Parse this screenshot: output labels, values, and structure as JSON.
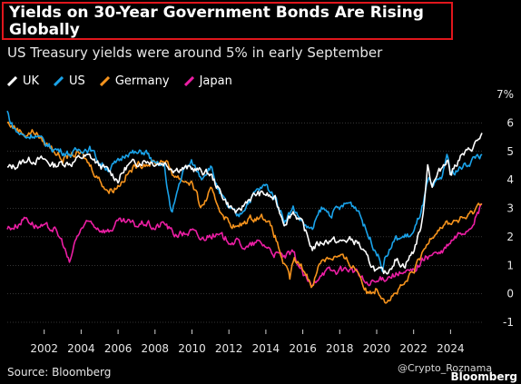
{
  "header": {
    "title": "Yields on 30-Year Government Bonds Are Rising Globally",
    "subtitle": "US Treasury yields were around 5% in early September"
  },
  "footer": {
    "source": "Source: Bloomberg",
    "watermark": "@Crypto_Roznama",
    "brand": "Bloomberg"
  },
  "colors": {
    "background": "#000000",
    "title_border": "#e0161c",
    "gridline": "#6a6a6a"
  },
  "chart_data": {
    "type": "line",
    "title": "Yields on 30-Year Government Bonds Are Rising Globally",
    "subtitle": "US Treasury yields were around 5% in early September",
    "xlabel": "",
    "ylabel": "",
    "y_unit": "%",
    "xlim": [
      2000.0,
      2025.75
    ],
    "ylim": [
      -1,
      7
    ],
    "x_ticks": [
      2002,
      2004,
      2006,
      2008,
      2010,
      2012,
      2014,
      2016,
      2018,
      2020,
      2022,
      2024
    ],
    "y_ticks": [
      -1,
      0,
      1,
      2,
      3,
      4,
      5,
      6,
      7
    ],
    "grid": "horizontal",
    "legend_position": "top-left",
    "series": [
      {
        "name": "UK",
        "color": "#ffffff",
        "x": [
          2000.0,
          2000.5,
          2001.0,
          2001.5,
          2002.0,
          2002.5,
          2003.0,
          2003.5,
          2004.0,
          2004.5,
          2005.0,
          2005.5,
          2006.0,
          2006.5,
          2007.0,
          2007.5,
          2008.0,
          2008.5,
          2009.0,
          2009.5,
          2010.0,
          2010.5,
          2011.0,
          2011.5,
          2012.0,
          2012.5,
          2013.0,
          2013.5,
          2014.0,
          2014.5,
          2015.0,
          2015.5,
          2016.0,
          2016.5,
          2017.0,
          2017.5,
          2018.0,
          2018.5,
          2019.0,
          2019.5,
          2020.0,
          2020.5,
          2021.0,
          2021.5,
          2022.0,
          2022.5,
          2022.75,
          2023.0,
          2023.5,
          2023.83,
          2024.0,
          2024.5,
          2025.0,
          2025.5,
          2025.7
        ],
        "y": [
          4.4,
          4.5,
          4.7,
          4.7,
          4.7,
          4.5,
          4.6,
          4.6,
          4.8,
          4.8,
          4.5,
          4.3,
          4.0,
          4.5,
          4.6,
          4.7,
          4.6,
          4.6,
          4.4,
          4.4,
          4.4,
          4.3,
          4.2,
          3.6,
          3.1,
          2.8,
          3.3,
          3.5,
          3.5,
          3.3,
          2.5,
          2.9,
          2.4,
          1.6,
          1.8,
          1.9,
          1.8,
          1.9,
          1.8,
          1.2,
          0.8,
          0.7,
          1.2,
          1.0,
          1.5,
          2.6,
          4.6,
          3.8,
          4.4,
          4.8,
          4.2,
          4.8,
          5.0,
          5.4,
          5.6
        ]
      },
      {
        "name": "US",
        "color": "#1aa3ea",
        "x": [
          2000.0,
          2000.2,
          2000.5,
          2001.0,
          2001.5,
          2002.0,
          2002.5,
          2003.0,
          2003.5,
          2004.0,
          2004.5,
          2005.0,
          2005.5,
          2006.0,
          2006.5,
          2007.0,
          2007.5,
          2008.0,
          2008.5,
          2008.9,
          2009.2,
          2009.5,
          2010.0,
          2010.5,
          2011.0,
          2011.5,
          2012.0,
          2012.5,
          2013.0,
          2013.5,
          2014.0,
          2014.5,
          2015.0,
          2015.5,
          2016.0,
          2016.5,
          2017.0,
          2017.5,
          2018.0,
          2018.5,
          2019.0,
          2019.5,
          2020.0,
          2020.3,
          2020.5,
          2021.0,
          2021.5,
          2022.0,
          2022.5,
          2022.8,
          2023.0,
          2023.5,
          2023.8,
          2024.0,
          2024.5,
          2025.0,
          2025.5,
          2025.7
        ],
        "y": [
          6.4,
          6.0,
          5.7,
          5.5,
          5.6,
          5.3,
          5.1,
          5.0,
          4.9,
          5.1,
          5.1,
          4.6,
          4.4,
          4.6,
          5.0,
          4.9,
          5.0,
          4.5,
          4.5,
          2.7,
          3.6,
          4.3,
          4.6,
          4.1,
          4.5,
          3.5,
          3.0,
          2.7,
          3.2,
          3.6,
          3.8,
          3.4,
          2.6,
          3.0,
          2.5,
          2.2,
          3.0,
          2.8,
          3.0,
          3.2,
          3.0,
          2.1,
          1.5,
          0.9,
          1.3,
          1.9,
          2.0,
          2.1,
          3.1,
          4.0,
          3.7,
          4.0,
          4.9,
          4.2,
          4.4,
          4.6,
          4.9,
          4.8
        ]
      },
      {
        "name": "Germany",
        "color": "#f7941d",
        "x": [
          2000.0,
          2000.5,
          2001.0,
          2001.5,
          2002.0,
          2002.5,
          2003.0,
          2003.5,
          2004.0,
          2004.5,
          2005.0,
          2005.5,
          2006.0,
          2006.5,
          2007.0,
          2007.5,
          2008.0,
          2008.5,
          2009.0,
          2009.5,
          2010.0,
          2010.5,
          2011.0,
          2011.5,
          2012.0,
          2012.5,
          2013.0,
          2013.5,
          2014.0,
          2014.5,
          2015.0,
          2015.3,
          2015.5,
          2016.0,
          2016.5,
          2017.0,
          2017.5,
          2018.0,
          2018.5,
          2019.0,
          2019.5,
          2020.0,
          2020.5,
          2021.0,
          2021.5,
          2022.0,
          2022.5,
          2023.0,
          2023.5,
          2024.0,
          2024.5,
          2025.0,
          2025.5,
          2025.7
        ],
        "y": [
          6.0,
          5.8,
          5.6,
          5.7,
          5.3,
          5.1,
          4.7,
          4.9,
          4.9,
          4.5,
          4.0,
          3.6,
          3.8,
          4.2,
          4.5,
          4.6,
          4.6,
          4.7,
          4.2,
          4.0,
          3.9,
          3.0,
          3.6,
          3.0,
          2.5,
          2.3,
          2.6,
          2.7,
          2.7,
          2.0,
          1.0,
          0.5,
          1.2,
          0.9,
          0.3,
          1.2,
          1.3,
          1.3,
          1.1,
          0.8,
          0.0,
          0.2,
          -0.2,
          0.0,
          0.3,
          0.8,
          1.4,
          2.1,
          2.4,
          2.5,
          2.6,
          2.7,
          3.1,
          3.3
        ]
      },
      {
        "name": "Japan",
        "color": "#ec1ea4",
        "x": [
          2000.0,
          2000.5,
          2001.0,
          2001.5,
          2002.0,
          2002.5,
          2003.0,
          2003.4,
          2003.6,
          2004.0,
          2004.5,
          2005.0,
          2005.5,
          2006.0,
          2006.5,
          2007.0,
          2007.5,
          2008.0,
          2008.5,
          2009.0,
          2009.5,
          2010.0,
          2010.5,
          2011.0,
          2011.5,
          2012.0,
          2012.5,
          2013.0,
          2013.5,
          2014.0,
          2014.5,
          2015.0,
          2015.5,
          2016.0,
          2016.5,
          2017.0,
          2017.5,
          2018.0,
          2018.5,
          2019.0,
          2019.5,
          2020.0,
          2020.5,
          2021.0,
          2021.5,
          2022.0,
          2022.5,
          2023.0,
          2023.5,
          2024.0,
          2024.5,
          2025.0,
          2025.5,
          2025.7
        ],
        "y": [
          2.3,
          2.4,
          2.7,
          2.4,
          2.3,
          2.3,
          1.8,
          1.0,
          1.7,
          2.3,
          2.5,
          2.3,
          2.2,
          2.5,
          2.5,
          2.4,
          2.5,
          2.3,
          2.5,
          2.1,
          2.1,
          2.2,
          1.9,
          2.1,
          2.0,
          1.9,
          1.8,
          1.6,
          1.8,
          1.7,
          1.4,
          1.3,
          1.4,
          0.7,
          0.2,
          0.8,
          0.8,
          0.8,
          0.9,
          0.7,
          0.3,
          0.4,
          0.6,
          0.7,
          0.7,
          0.8,
          1.2,
          1.4,
          1.4,
          1.8,
          2.1,
          2.3,
          2.8,
          3.2
        ]
      }
    ]
  }
}
